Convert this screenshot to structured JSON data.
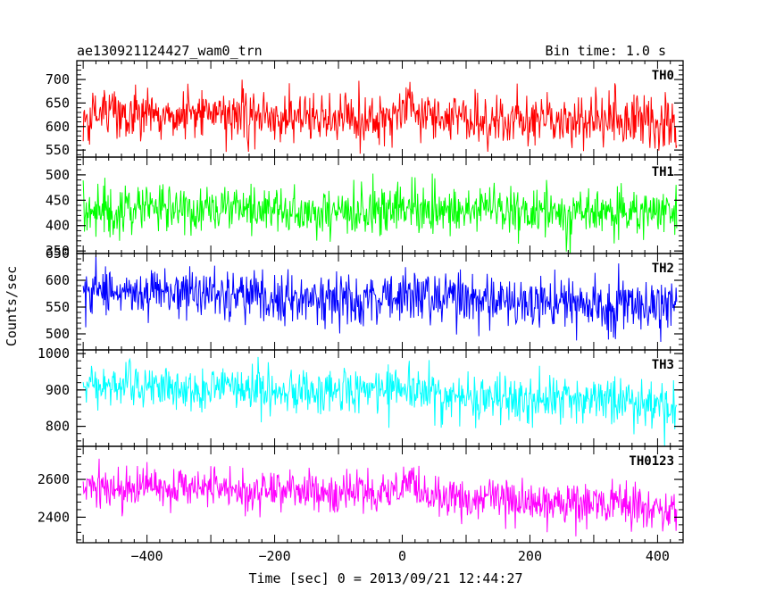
{
  "chart_data": {
    "type": "line",
    "title": "ae130921124427_wam0_trn",
    "subtitle": "Bin time: 1.0 s",
    "xlabel": "Time [sec] 0 = 2013/09/21 12:44:27",
    "ylabel": "Counts/sec",
    "xlim": [
      -510,
      440
    ],
    "x_ticks": [
      -400,
      -200,
      0,
      200,
      400
    ],
    "x_tick_labels": [
      "−400",
      "−200",
      "0",
      "200",
      "400"
    ],
    "x_data_range": [
      -500,
      430
    ],
    "grid": false,
    "panels": [
      {
        "name": "TH0",
        "color": "#ff0000",
        "ylim": [
          535,
          740
        ],
        "y_ticks": [
          550,
          600,
          650,
          700
        ],
        "y_tick_labels": [
          "550",
          "600",
          "650",
          "700"
        ],
        "trend": [
          [
            -500,
            628
          ],
          [
            -300,
            628
          ],
          [
            -100,
            618
          ],
          [
            0,
            625
          ],
          [
            10,
            650
          ],
          [
            40,
            625
          ],
          [
            200,
            612
          ],
          [
            430,
            605
          ]
        ],
        "noise_sd": 28
      },
      {
        "name": "TH1",
        "color": "#00ff00",
        "ylim": [
          345,
          535
        ],
        "y_ticks": [
          350,
          400,
          450,
          500
        ],
        "y_tick_labels": [
          "350",
          "400",
          "450",
          "500"
        ],
        "trend": [
          [
            -500,
            425
          ],
          [
            -300,
            432
          ],
          [
            -100,
            428
          ],
          [
            0,
            440
          ],
          [
            40,
            430
          ],
          [
            200,
            428
          ],
          [
            430,
            420
          ]
        ],
        "noise_sd": 24
      },
      {
        "name": "TH2",
        "color": "#0000ff",
        "ylim": [
          470,
          650
        ],
        "y_ticks": [
          500,
          550,
          600,
          650
        ],
        "y_tick_labels": [
          "500",
          "550",
          "600",
          "650"
        ],
        "trend": [
          [
            -500,
            578
          ],
          [
            -300,
            575
          ],
          [
            -100,
            568
          ],
          [
            0,
            572
          ],
          [
            200,
            558
          ],
          [
            430,
            552
          ]
        ],
        "noise_sd": 25
      },
      {
        "name": "TH3",
        "color": "#00ffff",
        "ylim": [
          745,
          1010
        ],
        "y_ticks": [
          800,
          900,
          1000
        ],
        "y_tick_labels": [
          "800",
          "900",
          "1000"
        ],
        "trend": [
          [
            -500,
            910
          ],
          [
            -300,
            905
          ],
          [
            -100,
            898
          ],
          [
            0,
            905
          ],
          [
            40,
            885
          ],
          [
            200,
            875
          ],
          [
            430,
            862
          ]
        ],
        "noise_sd": 32
      },
      {
        "name": "TH0123",
        "color": "#ff00ff",
        "ylim": [
          2265,
          2775
        ],
        "y_ticks": [
          2400,
          2600
        ],
        "y_tick_labels": [
          "2400",
          "2600"
        ],
        "trend": [
          [
            -500,
            2560
          ],
          [
            -300,
            2550
          ],
          [
            -100,
            2535
          ],
          [
            0,
            2545
          ],
          [
            10,
            2620
          ],
          [
            40,
            2510
          ],
          [
            200,
            2480
          ],
          [
            430,
            2450
          ]
        ],
        "noise_sd": 55
      }
    ]
  }
}
